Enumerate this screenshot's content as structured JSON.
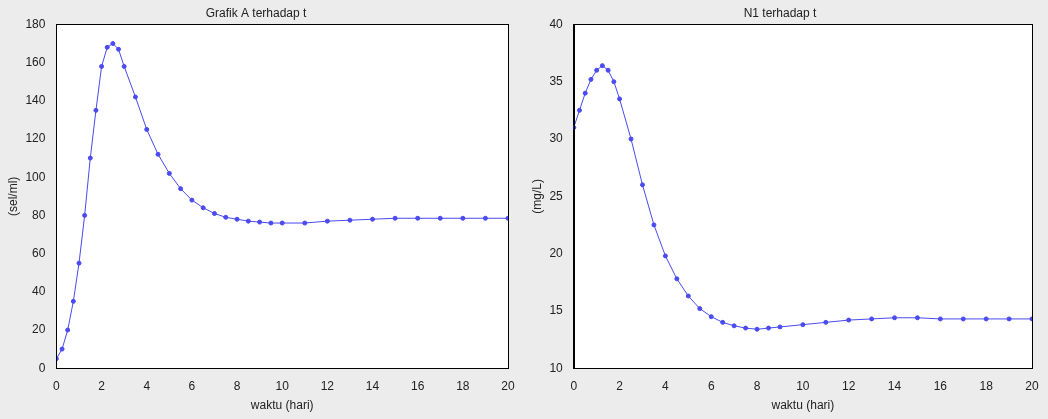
{
  "chart_data": [
    {
      "type": "line",
      "title": "Grafik A terhadap t",
      "x_label": "waktu (hari)",
      "y_label": "(sel/ml)",
      "x": [
        0,
        0.25,
        0.5,
        0.75,
        1,
        1.25,
        1.5,
        1.75,
        2,
        2.25,
        2.5,
        2.75,
        3,
        3.5,
        4,
        4.5,
        5,
        5.5,
        6,
        6.5,
        7,
        7.5,
        8,
        8.5,
        9,
        9.5,
        10,
        11,
        12,
        13,
        14,
        15,
        16,
        17,
        18,
        19,
        20
      ],
      "values": [
        5,
        10,
        20,
        35,
        55,
        80,
        110,
        135,
        158,
        168,
        170,
        167,
        158,
        142,
        125,
        112,
        102,
        94,
        88,
        84,
        81,
        79,
        78,
        77,
        76.5,
        76,
        76,
        76,
        77,
        77.5,
        78,
        78.5,
        78.5,
        78.5,
        78.5,
        78.5,
        78.5
      ],
      "color": "#4a4af0",
      "marker": "dot",
      "line_style": "solid",
      "grid": false,
      "xlim": [
        0,
        20
      ],
      "xticks": [
        0,
        2,
        4,
        6,
        8,
        10,
        12,
        14,
        16,
        18,
        20
      ],
      "ylim": [
        0,
        180
      ],
      "yticks": [
        0,
        20,
        40,
        60,
        80,
        100,
        120,
        140,
        160,
        180
      ]
    },
    {
      "type": "line",
      "title": "N1 terhadap t",
      "x_label": "waktu (hari)",
      "y_label": "(mg/L)",
      "x": [
        0,
        0.25,
        0.5,
        0.75,
        1,
        1.25,
        1.5,
        1.75,
        2,
        2.5,
        3,
        3.5,
        4,
        4.5,
        5,
        5.5,
        6,
        6.5,
        7,
        7.5,
        8,
        8.5,
        9,
        10,
        11,
        12,
        13,
        14,
        15,
        16,
        17,
        18,
        19,
        20
      ],
      "values": [
        31,
        32.5,
        34,
        35.2,
        36,
        36.4,
        36,
        35,
        33.5,
        30,
        26,
        22.5,
        19.8,
        17.8,
        16.3,
        15.2,
        14.5,
        14,
        13.7,
        13.5,
        13.4,
        13.5,
        13.6,
        13.8,
        14,
        14.2,
        14.3,
        14.4,
        14.4,
        14.3,
        14.3,
        14.3,
        14.3,
        14.3
      ],
      "color": "#4a4af0",
      "marker": "dot",
      "line_style": "solid",
      "grid": false,
      "xlim": [
        0,
        20
      ],
      "xticks": [
        0,
        2,
        4,
        6,
        8,
        10,
        12,
        14,
        16,
        18,
        20
      ],
      "ylim": [
        10,
        40
      ],
      "yticks": [
        10,
        15,
        20,
        25,
        30,
        35,
        40
      ]
    }
  ]
}
